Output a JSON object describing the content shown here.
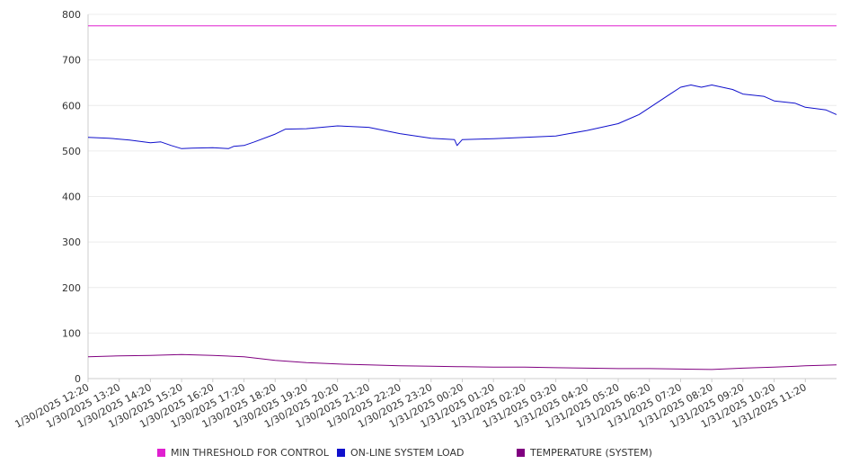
{
  "chart_data": {
    "type": "line",
    "ylim": [
      0,
      800
    ],
    "yticks": [
      0,
      100,
      200,
      300,
      400,
      500,
      600,
      700,
      800
    ],
    "xlim": [
      "2025-01-30T12:20",
      "2025-01-31T12:20"
    ],
    "xtick_labels": [
      "1/30/2025 12:20",
      "1/30/2025 13:20",
      "1/30/2025 14:20",
      "1/30/2025 15:20",
      "1/30/2025 16:20",
      "1/30/2025 17:20",
      "1/30/2025 18:20",
      "1/30/2025 19:20",
      "1/30/2025 20:20",
      "1/30/2025 21:20",
      "1/30/2025 22:20",
      "1/30/2025 23:20",
      "1/31/2025 00:20",
      "1/31/2025 01:20",
      "1/31/2025 02:20",
      "1/31/2025 03:20",
      "1/31/2025 04:20",
      "1/31/2025 05:20",
      "1/31/2025 06:20",
      "1/31/2025 07:20",
      "1/31/2025 08:20",
      "1/31/2025 09:20",
      "1/31/2025 10:20",
      "1/31/2025 11:20"
    ],
    "grid": true,
    "legend_position": "bottom",
    "series": [
      {
        "name": "MIN THRESHOLD FOR CONTROL",
        "color": "#e020d0",
        "x": [
          "2025-01-30T12:20",
          "2025-01-31T12:20"
        ],
        "values": [
          775,
          775
        ]
      },
      {
        "name": "ON-LINE SYSTEM LOAD",
        "color": "#1010cc",
        "x": [
          "2025-01-30T12:20",
          "2025-01-30T13:00",
          "2025-01-30T13:40",
          "2025-01-30T14:20",
          "2025-01-30T14:40",
          "2025-01-30T15:00",
          "2025-01-30T15:20",
          "2025-01-30T15:40",
          "2025-01-30T16:20",
          "2025-01-30T16:50",
          "2025-01-30T17:00",
          "2025-01-30T17:20",
          "2025-01-30T17:40",
          "2025-01-30T18:20",
          "2025-01-30T18:40",
          "2025-01-30T19:20",
          "2025-01-30T20:20",
          "2025-01-30T21:20",
          "2025-01-30T22:20",
          "2025-01-30T23:20",
          "2025-01-31T00:05",
          "2025-01-31T00:10",
          "2025-01-31T00:20",
          "2025-01-31T01:20",
          "2025-01-31T02:20",
          "2025-01-31T03:20",
          "2025-01-31T04:20",
          "2025-01-31T05:20",
          "2025-01-31T06:00",
          "2025-01-31T06:20",
          "2025-01-31T07:00",
          "2025-01-31T07:20",
          "2025-01-31T07:40",
          "2025-01-31T08:00",
          "2025-01-31T08:20",
          "2025-01-31T09:00",
          "2025-01-31T09:20",
          "2025-01-31T10:00",
          "2025-01-31T10:20",
          "2025-01-31T11:00",
          "2025-01-31T11:20",
          "2025-01-31T12:00",
          "2025-01-31T12:20"
        ],
        "values": [
          530,
          528,
          524,
          518,
          520,
          512,
          505,
          506,
          507,
          505,
          510,
          512,
          520,
          537,
          548,
          549,
          555,
          552,
          538,
          528,
          525,
          512,
          525,
          527,
          530,
          533,
          545,
          560,
          580,
          595,
          625,
          640,
          645,
          640,
          645,
          635,
          625,
          620,
          610,
          605,
          596,
          590,
          580
        ]
      },
      {
        "name": "TEMPERATURE (SYSTEM)",
        "color": "#800080",
        "x": [
          "2025-01-30T12:20",
          "2025-01-30T13:20",
          "2025-01-30T14:20",
          "2025-01-30T15:20",
          "2025-01-30T16:20",
          "2025-01-30T17:20",
          "2025-01-30T18:20",
          "2025-01-30T19:20",
          "2025-01-30T20:20",
          "2025-01-30T21:20",
          "2025-01-30T22:20",
          "2025-01-30T23:20",
          "2025-01-31T00:20",
          "2025-01-31T01:20",
          "2025-01-31T02:20",
          "2025-01-31T03:20",
          "2025-01-31T04:20",
          "2025-01-31T05:20",
          "2025-01-31T06:20",
          "2025-01-31T07:20",
          "2025-01-31T08:20",
          "2025-01-31T09:20",
          "2025-01-31T10:20",
          "2025-01-31T11:20",
          "2025-01-31T12:20"
        ],
        "values": [
          48,
          50,
          51,
          53,
          51,
          48,
          40,
          35,
          32,
          30,
          28,
          27,
          26,
          25,
          25,
          24,
          23,
          22,
          22,
          21,
          20,
          23,
          25,
          28,
          30
        ]
      }
    ]
  }
}
